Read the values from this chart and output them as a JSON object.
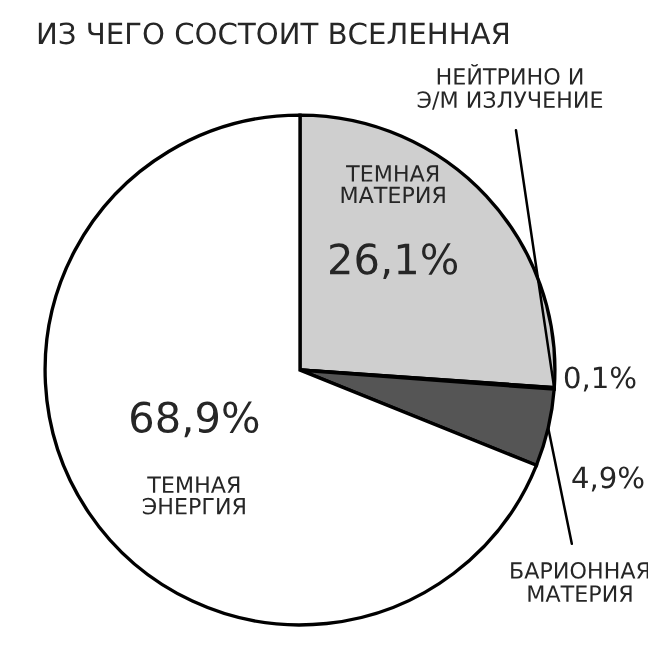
{
  "chart_data": {
    "type": "pie",
    "title": "ИЗ ЧЕГО СОСТОИТ ВСЕЛЕННАЯ",
    "categories": [
      "ТЕМНАЯ\nМАТЕРИЯ",
      "НЕЙТРИНО И\nЭ/М ИЗЛУЧЕНИЕ",
      "БАРИОННАЯ\nМАТЕРИЯ",
      "ТЕМНАЯ\nЭНЕРГИЯ"
    ],
    "values": [
      26.1,
      0.1,
      4.9,
      68.9
    ],
    "value_labels": [
      "26,1%",
      "0,1%",
      "4,9%",
      "68,9%"
    ],
    "colors": [
      "#cfcfcf",
      "#ffffff",
      "#555555",
      "#ffffff"
    ],
    "legend": false
  }
}
